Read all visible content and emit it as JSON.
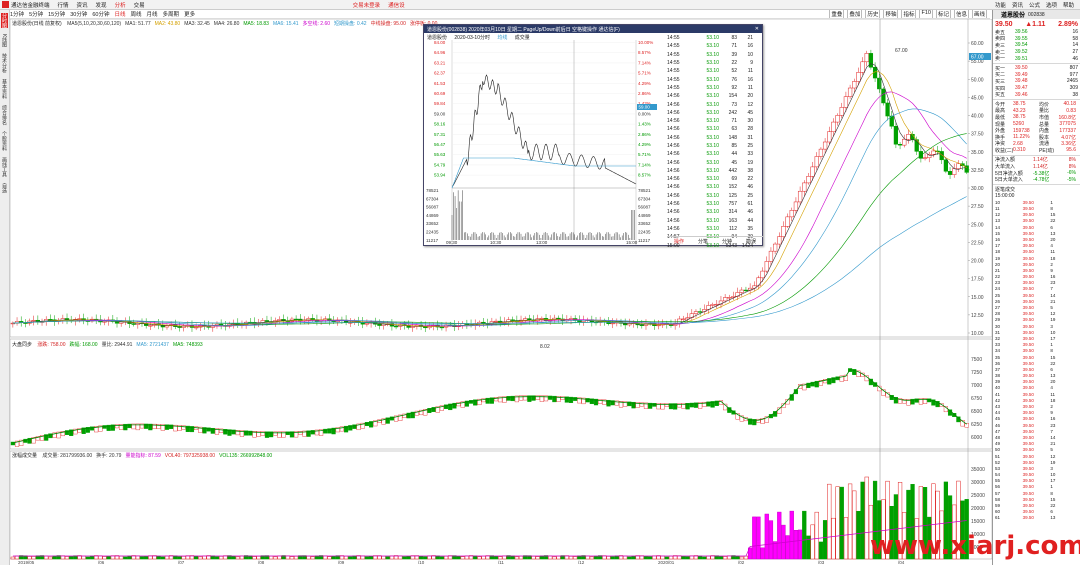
{
  "menubar": {
    "title": "通达信金融终端",
    "items": [
      "行情",
      "资讯",
      "发现",
      "分析",
      "交易"
    ],
    "center": [
      "交易未登录",
      "通信设"
    ],
    "right": [
      "功能",
      "资讯",
      "公式",
      "选项",
      "帮助"
    ]
  },
  "toolbar": {
    "periods": [
      "1分钟",
      "5分钟",
      "15分钟",
      "30分钟",
      "60分钟",
      "日线",
      "周线",
      "月线",
      "多周期",
      "更多"
    ],
    "selected": "日线",
    "right": [
      "重叠",
      "叠加",
      "历史",
      "移轴",
      "指标",
      "F10",
      "标记",
      "信息",
      "画线"
    ]
  },
  "leftstrip": [
    "分时图",
    "K线图",
    "技术分析",
    "基本资料",
    "综合排名",
    "个股资料",
    "画线工具",
    "自选"
  ],
  "kline_panel": {
    "title": "道恩股份(日线 前复权)",
    "ma": [
      {
        "label": "MA5(5,10,20,30,60,120)",
        "color": "#333333"
      },
      {
        "label": "MA1: 51.77",
        "color": "#333333"
      },
      {
        "label": "MA2: 43.80",
        "color": "#d4a000"
      },
      {
        "label": "MA3: 32.45",
        "color": "#333333"
      },
      {
        "label": "MA4: 26.80",
        "color": "#333333"
      },
      {
        "label": "MA5: 18.83",
        "color": "#009900"
      },
      {
        "label": "MA6: 15.41",
        "color": "#3399cc"
      }
    ],
    "extra": [
      {
        "label": "多空线: 2.60",
        "color": "#cc00cc"
      },
      {
        "label": "短期操盘: 0.42",
        "color": "#3399cc"
      },
      {
        "label": "中线操盘: 95.00",
        "color": "#d22222"
      },
      {
        "label": "涨停板: 0.00",
        "color": "#d22222"
      }
    ],
    "high_label": "67.00",
    "low_label": "8.02",
    "right_price_tag": "67.00"
  },
  "indicator_panel": {
    "title": "大盘同步",
    "values": [
      {
        "label": "涨跌: 758.00",
        "color": "#d22222"
      },
      {
        "label": "跌幅: 168.00",
        "color": "#009900"
      },
      {
        "label": "量比: 2944.91",
        "color": "#333333"
      },
      {
        "label": "MA5: 2721437",
        "color": "#3399cc"
      },
      {
        "label": "MA5: 748393",
        "color": "#009900"
      }
    ]
  },
  "volume_panel": {
    "title": "涨幅成交量",
    "values": [
      {
        "label": "成交量: 281799936.00",
        "color": "#333333"
      },
      {
        "label": "换手: 20.79",
        "color": "#333333"
      },
      {
        "label": "量能指标: 87.59",
        "color": "#cc00cc"
      },
      {
        "label": "VOL40: 797325938.00",
        "color": "#d22222"
      },
      {
        "label": "VOL135: 266992848.00",
        "color": "#009900"
      }
    ]
  },
  "axes": {
    "kline_ticks": [
      "60.00",
      "55.00",
      "50.00",
      "45.00",
      "40.00",
      "37.50",
      "35.00",
      "32.50",
      "30.00",
      "27.50",
      "25.00",
      "22.50",
      "20.00",
      "17.50",
      "15.00",
      "12.50",
      "10.00"
    ],
    "ind_ticks": [
      "7500",
      "7250",
      "7000",
      "6750",
      "6500",
      "6250",
      "6000"
    ],
    "vol_ticks": [
      "35000",
      "30000",
      "25000",
      "20000",
      "15000",
      "10000",
      "5000"
    ],
    "date_ticks": [
      "2019/05",
      "/06",
      "/07",
      "/08",
      "/09",
      "/10",
      "/11",
      "/12",
      "2020/01",
      "/02",
      "/03",
      "/04"
    ]
  },
  "popup": {
    "title": "道恩股份(002838) 2020年03月10日 星期二 PageUp/Down前后日 空格键操作 通达信(F)",
    "sub": [
      "道恩股份",
      "2020-03-10分时",
      "均线",
      "成交量"
    ],
    "left_prices": [
      "84.00",
      "64.96",
      "63.21",
      "62.37",
      "61.53",
      "60.69",
      "59.84",
      "59.00",
      "58.16",
      "57.31",
      "56.47",
      "55.63",
      "54.79",
      "53.94"
    ],
    "right_pcts": [
      "10.00%",
      "8.57%",
      "7.14%",
      "5.71%",
      "4.29%",
      "2.86%",
      "1.43%",
      "0.00%",
      "1.43%",
      "2.86%",
      "4.29%",
      "5.71%",
      "7.14%",
      "8.57%"
    ],
    "vol_ticks": [
      "78521",
      "67304",
      "56087",
      "44869",
      "33652",
      "22435",
      "11217"
    ],
    "time_ticks": [
      "09:30",
      "10:30",
      "13:00",
      "13:50",
      "15:00"
    ],
    "base_label": "59.00",
    "cursor_time": "13:50",
    "foot": [
      "操作",
      "分笔",
      "分钟",
      "勘误"
    ],
    "ticks": [
      {
        "t": "14:55",
        "p": "53.10",
        "v": "83",
        "n": "21"
      },
      {
        "t": "14:55",
        "p": "53.10",
        "v": "71",
        "n": "16"
      },
      {
        "t": "14:55",
        "p": "53.10",
        "v": "39",
        "n": "10"
      },
      {
        "t": "14:55",
        "p": "53.10",
        "v": "22",
        "n": "9"
      },
      {
        "t": "14:55",
        "p": "53.10",
        "v": "52",
        "n": "11"
      },
      {
        "t": "14:55",
        "p": "53.10",
        "v": "76",
        "n": "16"
      },
      {
        "t": "14:55",
        "p": "53.10",
        "v": "92",
        "n": "11"
      },
      {
        "t": "14:56",
        "p": "53.10",
        "v": "154",
        "n": "20"
      },
      {
        "t": "14:56",
        "p": "53.10",
        "v": "73",
        "n": "12"
      },
      {
        "t": "14:56",
        "p": "53.10",
        "v": "242",
        "n": "45"
      },
      {
        "t": "14:56",
        "p": "53.10",
        "v": "71",
        "n": "30"
      },
      {
        "t": "14:56",
        "p": "53.10",
        "v": "63",
        "n": "28"
      },
      {
        "t": "14:56",
        "p": "53.10",
        "v": "148",
        "n": "31"
      },
      {
        "t": "14:56",
        "p": "53.10",
        "v": "85",
        "n": "25"
      },
      {
        "t": "14:56",
        "p": "53.10",
        "v": "44",
        "n": "33"
      },
      {
        "t": "14:56",
        "p": "53.10",
        "v": "45",
        "n": "19"
      },
      {
        "t": "14:56",
        "p": "53.10",
        "v": "442",
        "n": "38"
      },
      {
        "t": "14:56",
        "p": "53.10",
        "v": "69",
        "n": "22"
      },
      {
        "t": "14:56",
        "p": "53.10",
        "v": "152",
        "n": "46"
      },
      {
        "t": "14:56",
        "p": "53.10",
        "v": "125",
        "n": "25"
      },
      {
        "t": "14:56",
        "p": "53.10",
        "v": "757",
        "n": "61"
      },
      {
        "t": "14:56",
        "p": "53.10",
        "v": "314",
        "n": "46"
      },
      {
        "t": "14:56",
        "p": "53.10",
        "v": "163",
        "n": "44"
      },
      {
        "t": "14:56",
        "p": "53.10",
        "v": "112",
        "n": "35"
      },
      {
        "t": "14:57",
        "p": "53.10",
        "v": "94",
        "n": "39"
      },
      {
        "t": "15:00",
        "p": "53.10",
        "v": "5343",
        "n": "1424"
      }
    ]
  },
  "right_panel": {
    "name": "道恩股份",
    "code": "002838",
    "price": "39.50",
    "change": "▲1.11",
    "pct": "2.89%",
    "asks": [
      {
        "l": "卖五",
        "p": "39.56",
        "v": "16"
      },
      {
        "l": "卖四",
        "p": "39.55",
        "v": "58"
      },
      {
        "l": "卖三",
        "p": "39.54",
        "v": "14"
      },
      {
        "l": "卖二",
        "p": "39.52",
        "v": "27"
      },
      {
        "l": "卖一",
        "p": "39.51",
        "v": "46"
      }
    ],
    "bids": [
      {
        "l": "买一",
        "p": "39.50",
        "v": "807"
      },
      {
        "l": "买二",
        "p": "39.49",
        "v": "977"
      },
      {
        "l": "买三",
        "p": "39.48",
        "v": "2465"
      },
      {
        "l": "买四",
        "p": "39.47",
        "v": "309"
      },
      {
        "l": "买五",
        "p": "39.46",
        "v": "38"
      }
    ],
    "stats": [
      {
        "k": "今开",
        "v": "38.75",
        "k2": "均价",
        "v2": "40.18"
      },
      {
        "k": "最高",
        "v": "43.23",
        "k2": "量比",
        "v2": "0.83"
      },
      {
        "k": "最低",
        "v": "38.75",
        "k2": "市值",
        "v2": "160.8亿"
      },
      {
        "k": "现量",
        "v": "5260",
        "k2": "总量",
        "v2": "377075"
      },
      {
        "k": "外盘",
        "v": "159738",
        "k2": "内盘",
        "v2": "177337"
      },
      {
        "k": "换手",
        "v": "11.22%",
        "k2": "股本",
        "v2": "4.07亿"
      },
      {
        "k": "净资",
        "v": "2.68",
        "k2": "流通",
        "v2": "3.36亿"
      },
      {
        "k": "收益(二)",
        "v": "0.310",
        "k2": "PE(动)",
        "v2": "95.6"
      }
    ],
    "flows": [
      {
        "k": "净流入额",
        "v": "1.14亿",
        "p": "8%",
        "c": "#d22222"
      },
      {
        "k": "大单流入",
        "v": "1.14亿",
        "p": "8%",
        "c": "#d22222"
      },
      {
        "k": "5日净流入额",
        "v": "-5.38亿",
        "p": "-6%",
        "c": "#009900"
      },
      {
        "k": "5日大单流入",
        "v": "-4.78亿",
        "p": "-5%",
        "c": "#009900"
      }
    ],
    "tick_title": "逐笔成交",
    "tick_time": "15:00:00"
  },
  "watermark": "www.xiarj.com"
}
